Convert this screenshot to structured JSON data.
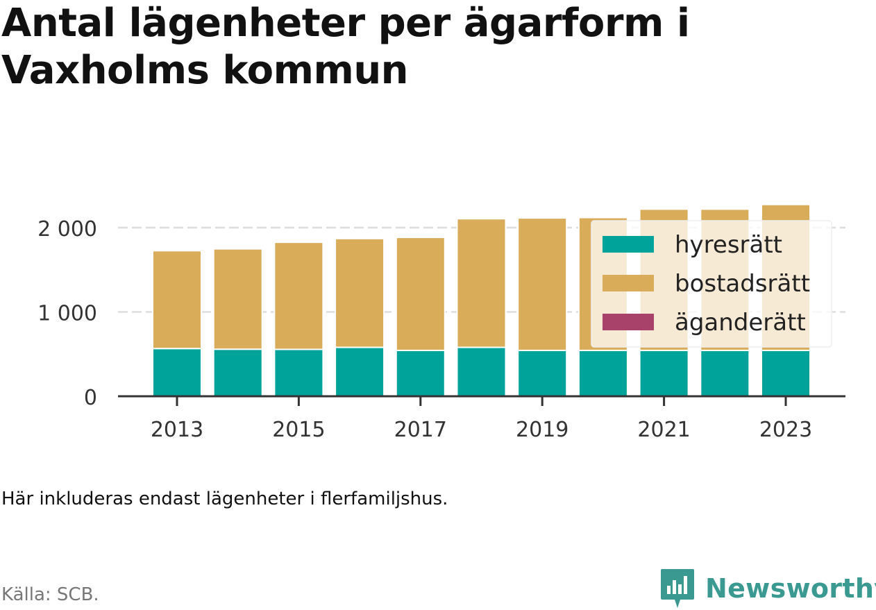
{
  "title": "Antal lägenheter per ägarform i Vaxholms kommun",
  "note": "Här inkluderas endast lägenheter i flerfamiljshus.",
  "source": "Källa: SCB.",
  "brand": {
    "name": "Newsworthy",
    "icon": "newsworthy-logo-icon"
  },
  "colors": {
    "hyresratt": "#00a39a",
    "bostadsratt": "#d9ac5a",
    "aganderatt": "#a8426b",
    "grid": "#dddddd",
    "axis": "#333333"
  },
  "chart_data": {
    "type": "bar",
    "stacked": true,
    "categories": [
      "2013",
      "2014",
      "2015",
      "2016",
      "2017",
      "2018",
      "2019",
      "2020",
      "2021",
      "2022",
      "2023"
    ],
    "series": [
      {
        "name": "hyresrätt",
        "values": [
          566,
          558,
          556,
          580,
          544,
          580,
          544,
          544,
          544,
          544,
          544
        ]
      },
      {
        "name": "bostadsrätt",
        "values": [
          1160,
          1190,
          1270,
          1290,
          1340,
          1525,
          1570,
          1575,
          1675,
          1675,
          1730
        ]
      },
      {
        "name": "äganderätt",
        "values": [
          0,
          0,
          0,
          0,
          0,
          0,
          0,
          0,
          0,
          0,
          0
        ]
      }
    ],
    "x_tick_labels": [
      "2013",
      "2015",
      "2017",
      "2019",
      "2021",
      "2023"
    ],
    "y_ticks": [
      0,
      1000,
      2000
    ],
    "y_tick_labels": [
      "0",
      "1 000",
      "2 000"
    ],
    "ylim": [
      0,
      2300
    ],
    "grid": "horizontal dashed",
    "legend": {
      "placement": "top-right",
      "entries": [
        "hyresrätt",
        "bostadsrätt",
        "äganderätt"
      ]
    }
  }
}
